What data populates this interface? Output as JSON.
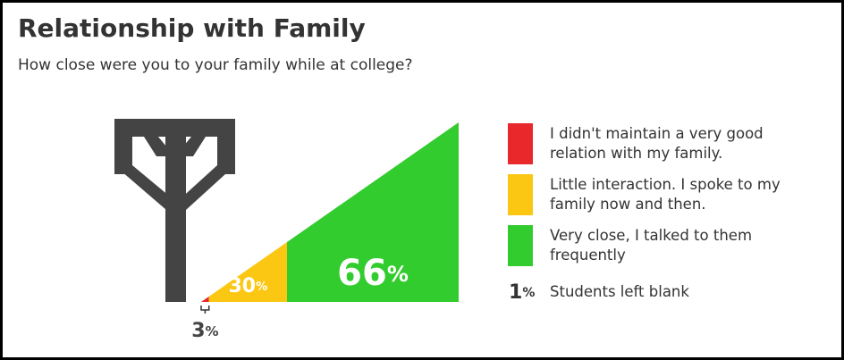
{
  "chart_data": {
    "type": "triangle",
    "title": "Relationship with Family",
    "subtitle": "How close were you to your family while at college?",
    "series": [
      {
        "name": "I didn't maintain a very good relation with my family.",
        "color": "#e8282b",
        "value": 3,
        "value_label": "3%"
      },
      {
        "name": "Little interaction. I spoke to my family now and then.",
        "color": "#fbc712",
        "value": 30,
        "value_label": "30%"
      },
      {
        "name": "Very close, I talked to them frequently",
        "color": "#33cc2e",
        "value": 66,
        "value_label": "66%"
      }
    ],
    "blank": {
      "name": "Students left blank",
      "value": 1,
      "value_label": "1%"
    }
  }
}
